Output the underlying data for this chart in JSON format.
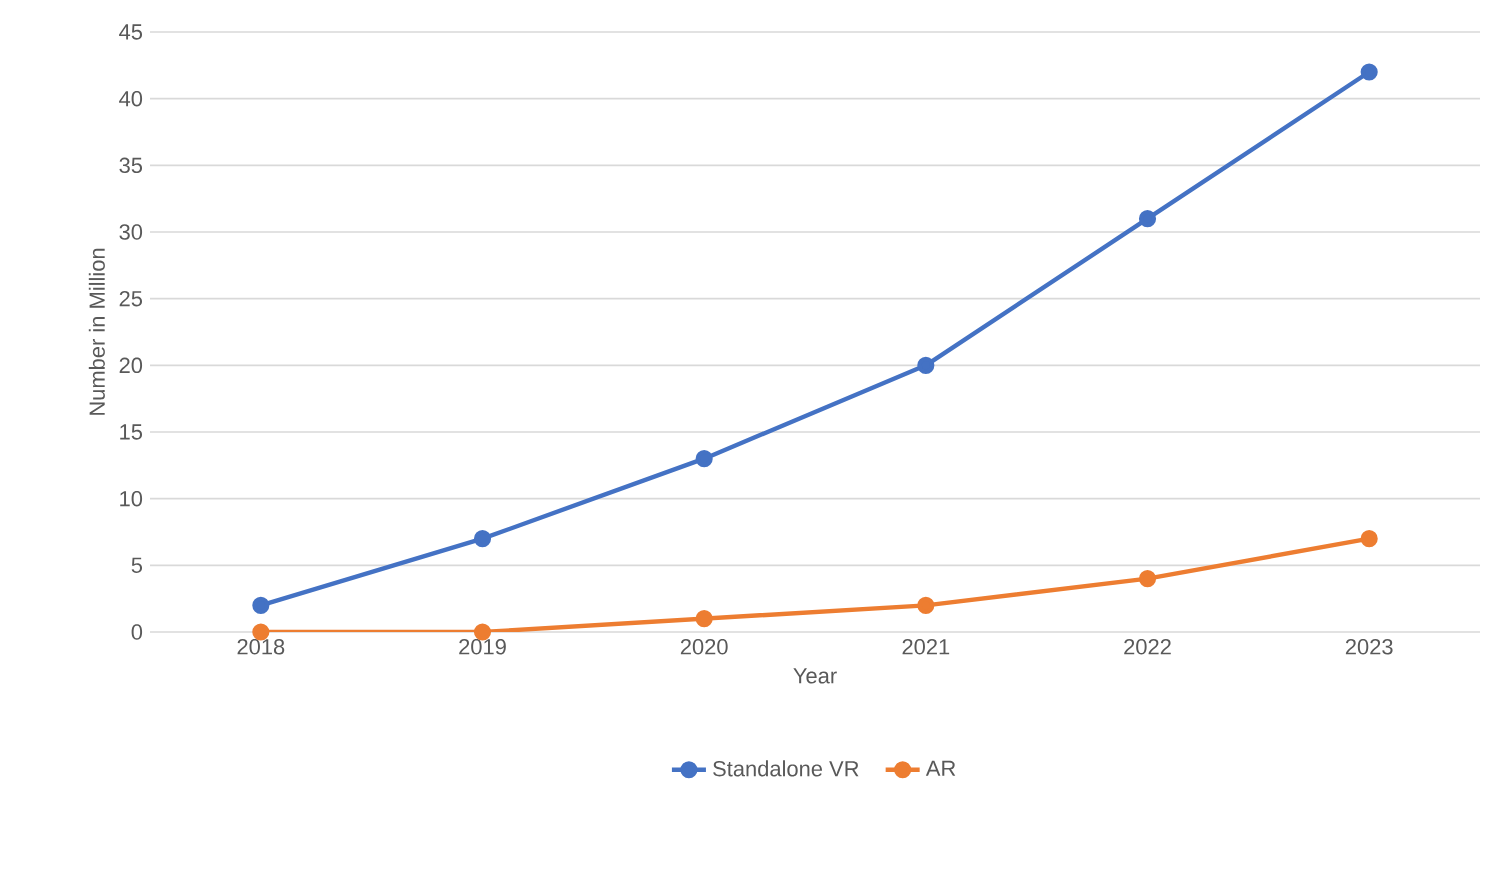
{
  "chart_data": {
    "type": "line",
    "xlabel": "Year",
    "ylabel": "Number in Million",
    "categories": [
      "2018",
      "2019",
      "2020",
      "2021",
      "2022",
      "2023"
    ],
    "series": [
      {
        "name": "Standalone VR",
        "color": "#4472c4",
        "values": [
          2,
          7,
          13,
          20,
          31,
          42
        ]
      },
      {
        "name": "AR",
        "color": "#ed7d31",
        "values": [
          0,
          0,
          1,
          2,
          4,
          7
        ]
      }
    ],
    "ylim": [
      0,
      45
    ],
    "yticks": [
      0,
      5,
      10,
      15,
      20,
      25,
      30,
      35,
      40,
      45
    ],
    "grid": "y",
    "legend": "bottom",
    "marker": "circle",
    "line_style": "solid"
  }
}
